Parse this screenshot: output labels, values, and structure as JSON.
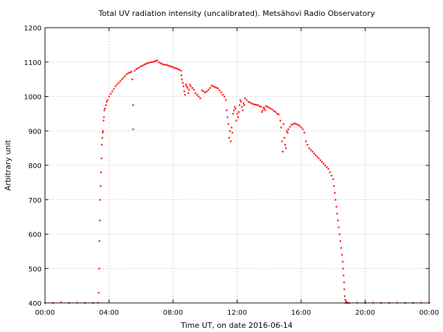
{
  "chart_data": {
    "type": "scatter",
    "title": "Total UV radiation intensity (uncalibrated). Metsähovi Radio Observatory",
    "xlabel": "Time UT, on date 2016-06-14",
    "ylabel": "Arbitrary unit",
    "xlim": [
      0,
      24
    ],
    "ylim": [
      400,
      1200
    ],
    "xticks": [
      0,
      4,
      8,
      12,
      16,
      20,
      24
    ],
    "xtick_labels": [
      "00:00",
      "04:00",
      "08:00",
      "12:00",
      "16:00",
      "20:00",
      "00:00"
    ],
    "yticks": [
      400,
      500,
      600,
      700,
      800,
      900,
      1000,
      1100,
      1200
    ],
    "ytick_labels": [
      "400",
      "500",
      "600",
      "700",
      "800",
      "900",
      "1000",
      "1100",
      "1200"
    ],
    "grid": true,
    "color": "#ff0000",
    "series": [
      {
        "x_hours": [
          0.0,
          0.5,
          1.0,
          1.5,
          2.0,
          2.5,
          3.0,
          3.3,
          3.35,
          3.38,
          3.4,
          3.42,
          3.45,
          3.47,
          3.5,
          3.53,
          3.55,
          3.58,
          3.6,
          3.62,
          3.65,
          3.68,
          3.7,
          3.75,
          3.8,
          3.85,
          3.9,
          4.0,
          4.1,
          4.2,
          4.3,
          4.4,
          4.5,
          4.6,
          4.7,
          4.8,
          4.9,
          5.0,
          5.1,
          5.2,
          5.3,
          5.4,
          5.5,
          5.6,
          5.7,
          5.8,
          5.5,
          5.45,
          5.9,
          6.0,
          6.1,
          6.2,
          6.3,
          6.4,
          6.5,
          6.6,
          6.7,
          6.8,
          6.9,
          7.0,
          7.1,
          7.2,
          7.3,
          7.4,
          7.5,
          7.6,
          7.7,
          7.8,
          7.9,
          8.0,
          8.1,
          8.2,
          8.3,
          8.4,
          8.5,
          8.52,
          8.55,
          8.6,
          8.65,
          8.7,
          8.75,
          8.8,
          8.85,
          8.9,
          8.95,
          9.0,
          9.05,
          9.1,
          9.2,
          9.3,
          9.4,
          9.5,
          9.6,
          9.7,
          9.8,
          9.9,
          10.0,
          10.1,
          10.2,
          10.3,
          10.4,
          10.5,
          10.6,
          10.7,
          10.8,
          10.9,
          11.0,
          11.1,
          11.2,
          11.3,
          11.35,
          11.4,
          11.45,
          11.5,
          11.55,
          11.6,
          11.65,
          11.7,
          11.75,
          11.8,
          11.85,
          11.9,
          11.95,
          12.0,
          12.05,
          12.1,
          12.15,
          12.2,
          12.25,
          12.3,
          12.35,
          12.4,
          12.45,
          12.5,
          12.6,
          12.7,
          12.8,
          12.9,
          13.0,
          13.1,
          13.2,
          13.3,
          13.4,
          13.5,
          13.55,
          13.6,
          13.65,
          13.7,
          13.75,
          13.8,
          13.9,
          14.0,
          14.1,
          14.2,
          14.3,
          14.4,
          14.5,
          14.6,
          14.7,
          14.75,
          14.8,
          14.85,
          14.9,
          14.95,
          15.0,
          15.05,
          15.1,
          15.15,
          15.2,
          15.3,
          15.4,
          15.5,
          15.6,
          15.7,
          15.8,
          15.9,
          16.0,
          16.1,
          16.2,
          16.3,
          16.4,
          16.5,
          16.6,
          16.7,
          16.8,
          16.9,
          17.0,
          17.1,
          17.2,
          17.3,
          17.4,
          17.5,
          17.6,
          17.7,
          17.8,
          17.9,
          18.0,
          18.05,
          18.1,
          18.15,
          18.2,
          18.25,
          18.3,
          18.35,
          18.4,
          18.45,
          18.5,
          18.55,
          18.6,
          18.62,
          18.65,
          18.68,
          18.7,
          18.72,
          18.75,
          18.78,
          18.8,
          18.85,
          18.9,
          19.0,
          19.5,
          20.0,
          20.5,
          21.0,
          21.5,
          22.0,
          22.5,
          23.0,
          23.5,
          24.0
        ],
        "y": [
          400,
          400,
          402,
          400,
          401,
          400,
          400,
          401,
          430,
          500,
          580,
          640,
          700,
          740,
          780,
          820,
          860,
          880,
          895,
          900,
          930,
          940,
          960,
          965,
          975,
          985,
          990,
          1000,
          1008,
          1015,
          1022,
          1030,
          1035,
          1040,
          1045,
          1050,
          1055,
          1060,
          1065,
          1068,
          1070,
          1072,
          975,
          1075,
          1080,
          1082,
          905,
          1050,
          1085,
          1088,
          1090,
          1093,
          1095,
          1097,
          1098,
          1100,
          1100,
          1102,
          1103,
          1105,
          1100,
          1097,
          1095,
          1093,
          1092,
          1092,
          1090,
          1088,
          1087,
          1085,
          1083,
          1082,
          1080,
          1078,
          1075,
          1062,
          1050,
          1040,
          1030,
          1015,
          1005,
          1035,
          1030,
          1025,
          1010,
          1020,
          1035,
          1030,
          1025,
          1020,
          1010,
          1005,
          1000,
          995,
          1018,
          1015,
          1012,
          1015,
          1020,
          1025,
          1032,
          1030,
          1028,
          1026,
          1024,
          1018,
          1012,
          1005,
          1000,
          990,
          960,
          940,
          920,
          880,
          900,
          870,
          910,
          895,
          950,
          960,
          970,
          965,
          930,
          950,
          940,
          955,
          975,
          990,
          985,
          970,
          960,
          980,
          975,
          995,
          990,
          985,
          983,
          980,
          978,
          977,
          976,
          975,
          972,
          970,
          955,
          960,
          968,
          965,
          960,
          972,
          970,
          968,
          965,
          962,
          958,
          955,
          950,
          948,
          930,
          910,
          870,
          840,
          920,
          880,
          860,
          850,
          900,
          895,
          905,
          912,
          918,
          920,
          922,
          920,
          918,
          915,
          910,
          905,
          895,
          870,
          860,
          850,
          845,
          840,
          835,
          830,
          825,
          820,
          815,
          810,
          805,
          800,
          795,
          790,
          780,
          770,
          760,
          740,
          720,
          700,
          680,
          660,
          640,
          620,
          600,
          580,
          560,
          540,
          520,
          500,
          480,
          460,
          440,
          420,
          410,
          400,
          405,
          402,
          400,
          400,
          401,
          400,
          401,
          400,
          400,
          401,
          400,
          400,
          401,
          400
        ]
      }
    ]
  }
}
